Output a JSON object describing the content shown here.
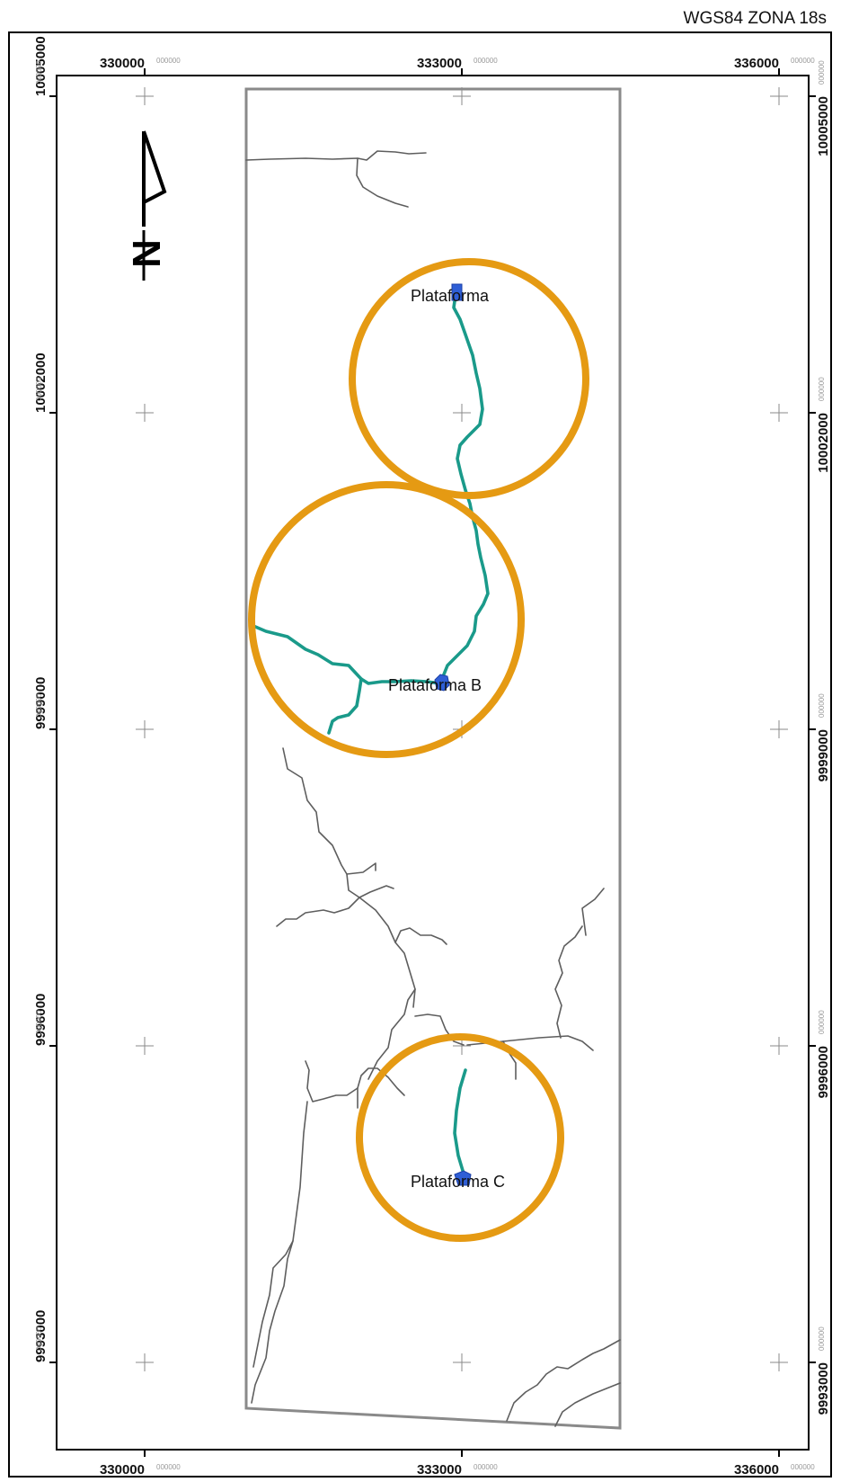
{
  "map": {
    "crs_label": "WGS84 ZONA 18s",
    "colors": {
      "buffer": "#e59a13",
      "access_road": "#1a9a8a",
      "road": "#5e5e5e",
      "platform": "#2f5fd6",
      "frame": "#000000",
      "area_outline": "#8a8a8a"
    },
    "north_arrow": {
      "icon": "north-arrow-icon",
      "label": "N"
    },
    "x_ticks": [
      {
        "value": "330000",
        "decimals": "000000"
      },
      {
        "value": "333000",
        "decimals": "000000"
      },
      {
        "value": "336000",
        "decimals": "000000"
      }
    ],
    "y_ticks": [
      {
        "value": "10005000",
        "decimals": "000000"
      },
      {
        "value": "10002000",
        "decimals": "000000"
      },
      {
        "value": "9999000",
        "decimals": "000000"
      },
      {
        "value": "9996000",
        "decimals": "000000"
      },
      {
        "value": "9993000",
        "decimals": "000000"
      }
    ],
    "platforms": [
      {
        "label": "Plataforma"
      },
      {
        "label": "Plataforma B"
      },
      {
        "label": "Plataforma C"
      }
    ]
  }
}
